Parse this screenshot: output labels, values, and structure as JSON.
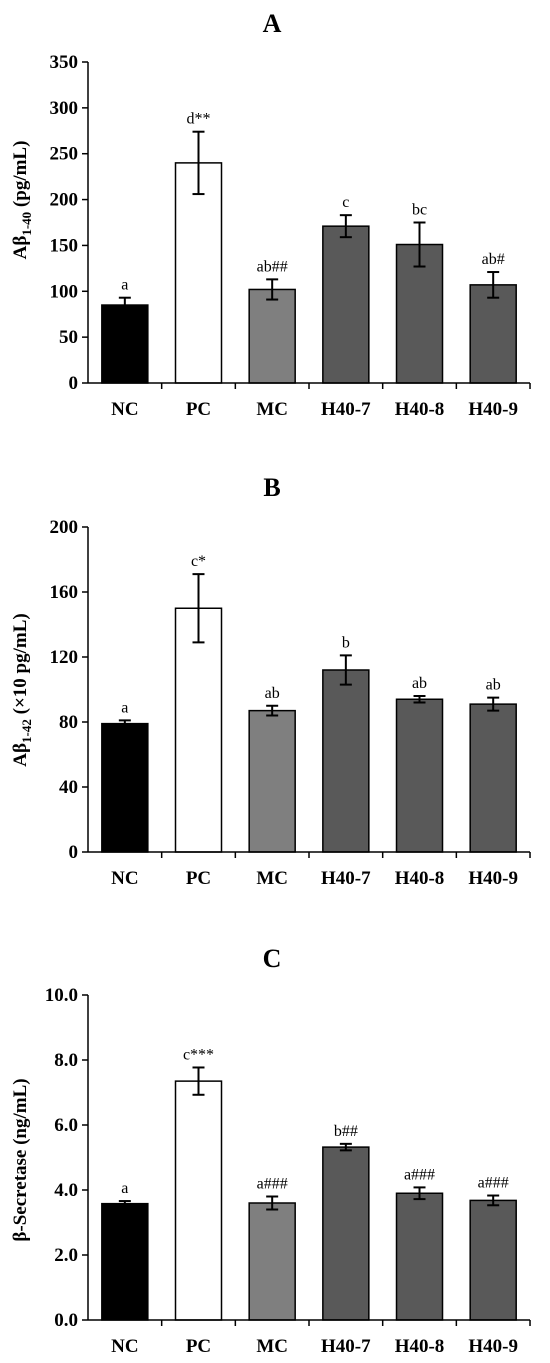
{
  "chart_data": [
    {
      "panel": "A",
      "type": "bar",
      "title": "A",
      "ylabel_main": "Aβ",
      "ylabel_sub": "1-40",
      "ylabel_rest": " (pg/mL)",
      "categories": [
        "NC",
        "PC",
        "MC",
        "H40-7",
        "H40-8",
        "H40-9"
      ],
      "values": [
        85,
        240,
        102,
        171,
        151,
        107
      ],
      "errors": [
        8,
        34,
        11,
        12,
        24,
        14
      ],
      "annotations": [
        "a",
        "d**",
        "ab##",
        "c",
        "bc",
        "ab#"
      ],
      "ylim": [
        0,
        350
      ],
      "yticks": [
        0,
        50,
        100,
        150,
        200,
        250,
        300,
        350
      ],
      "ytick_labels": [
        "0",
        "50",
        "100",
        "150",
        "200",
        "250",
        "300",
        "350"
      ],
      "bar_colors": [
        "#000000",
        "#ffffff",
        "#7f7f7f",
        "#595959",
        "#595959",
        "#595959"
      ],
      "grid": false,
      "legend": "none"
    },
    {
      "panel": "B",
      "type": "bar",
      "title": "B",
      "ylabel_main": "Aβ",
      "ylabel_sub": "1-42",
      "ylabel_rest": " (×10 pg/mL)",
      "categories": [
        "NC",
        "PC",
        "MC",
        "H40-7",
        "H40-8",
        "H40-9"
      ],
      "values": [
        79,
        150,
        87,
        112,
        94,
        91
      ],
      "errors": [
        2,
        21,
        3,
        9,
        2,
        4
      ],
      "annotations": [
        "a",
        "c*",
        "ab",
        "b",
        "ab",
        "ab"
      ],
      "ylim": [
        0,
        200
      ],
      "yticks": [
        0,
        40,
        80,
        120,
        160,
        200
      ],
      "ytick_labels": [
        "0",
        "40",
        "80",
        "120",
        "160",
        "200"
      ],
      "bar_colors": [
        "#000000",
        "#ffffff",
        "#7f7f7f",
        "#595959",
        "#595959",
        "#595959"
      ],
      "grid": false,
      "legend": "none"
    },
    {
      "panel": "C",
      "type": "bar",
      "title": "C",
      "ylabel_main": "β-Secretase (ng/mL)",
      "ylabel_sub": "",
      "ylabel_rest": "",
      "categories": [
        "NC",
        "PC",
        "MC",
        "H40-7",
        "H40-8",
        "H40-9"
      ],
      "values": [
        3.58,
        7.35,
        3.6,
        5.32,
        3.9,
        3.68
      ],
      "errors": [
        0.08,
        0.42,
        0.2,
        0.1,
        0.18,
        0.15
      ],
      "annotations": [
        "a",
        "c***",
        "a###",
        "b##",
        "a###",
        "a###"
      ],
      "ylim": [
        0,
        10
      ],
      "yticks": [
        0,
        2,
        4,
        6,
        8,
        10
      ],
      "ytick_labels": [
        "0.0",
        "2.0",
        "4.0",
        "6.0",
        "8.0",
        "10.0"
      ],
      "bar_colors": [
        "#000000",
        "#ffffff",
        "#7f7f7f",
        "#595959",
        "#595959",
        "#595959"
      ],
      "grid": false,
      "legend": "none"
    }
  ]
}
